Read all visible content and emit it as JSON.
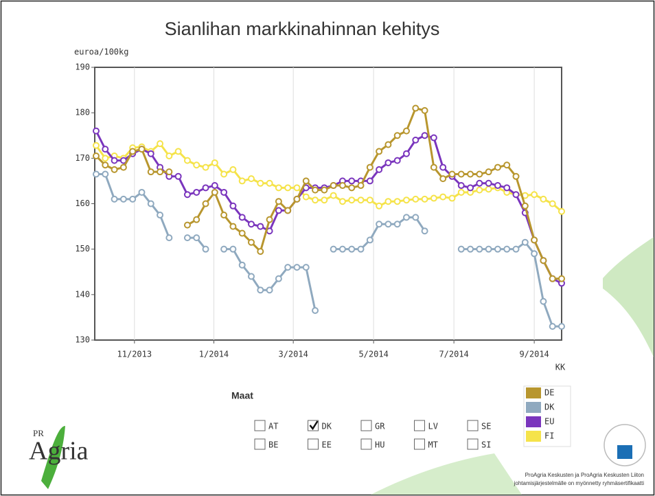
{
  "chart_data": {
    "type": "line",
    "title": "Sianlihan markkinahinnan kehitys",
    "y_label": "euroa/100kg",
    "x_label": "KK",
    "x": [
      0,
      1,
      2,
      3,
      4,
      5,
      6,
      7,
      8,
      9,
      10,
      11,
      12,
      13,
      14,
      15,
      16,
      17,
      18,
      19,
      20,
      21,
      22,
      23,
      24,
      25,
      26,
      27,
      28,
      29,
      30,
      31,
      32,
      33,
      34,
      35,
      36,
      37,
      38,
      39,
      40,
      41,
      42,
      43,
      44,
      45,
      46,
      47,
      48,
      49,
      50,
      51
    ],
    "xlim": [
      -0.15,
      51
    ],
    "xticks": [
      {
        "value": 4.2,
        "label": "11/2013"
      },
      {
        "value": 12.9,
        "label": "1/2014"
      },
      {
        "value": 21.6,
        "label": "3/2014"
      },
      {
        "value": 30.4,
        "label": "5/2014"
      },
      {
        "value": 39.2,
        "label": "7/2014"
      },
      {
        "value": 48,
        "label": "9/2014"
      }
    ],
    "ylim": [
      130,
      190
    ],
    "yticks": [
      130,
      140,
      150,
      160,
      170,
      180,
      190
    ],
    "grid": "x",
    "legend": "right",
    "series": [
      {
        "name": "DE",
        "color": "#b8962e",
        "values": [
          170.5,
          168.5,
          167.5,
          168,
          171.5,
          172,
          167,
          167,
          167,
          null,
          155.3,
          156.5,
          160,
          162.5,
          157.5,
          155,
          153.5,
          151.5,
          149.5,
          156.5,
          160.5,
          158.5,
          161,
          165,
          163,
          163,
          164,
          164,
          163.5,
          164,
          168,
          171.5,
          173,
          175,
          176,
          181,
          180.5,
          168,
          165.5,
          166.5,
          166.5,
          166.5,
          166.5,
          167,
          168,
          168.5,
          166,
          159.5,
          152,
          147.5,
          143.5,
          143.5
        ]
      },
      {
        "name": "DK",
        "color": "#8fa9bf",
        "values": [
          166.5,
          166.5,
          161,
          161,
          161,
          162.5,
          160,
          157.5,
          152.5,
          null,
          152.5,
          152.5,
          150,
          null,
          150,
          150,
          146.5,
          144,
          141,
          141,
          143.5,
          146,
          146,
          146,
          136.5,
          null,
          150,
          150,
          150,
          150,
          152,
          155.5,
          155.5,
          155.5,
          157,
          157,
          154,
          null,
          null,
          null,
          150,
          150,
          150,
          150,
          150,
          150,
          150,
          151.5,
          149,
          138.5,
          133,
          133
        ]
      },
      {
        "name": "EU",
        "color": "#7a35bd",
        "values": [
          176,
          172,
          169.5,
          169.5,
          171,
          172,
          171,
          168,
          166,
          166,
          162,
          162.5,
          163.5,
          164,
          162.5,
          159.5,
          157,
          155.5,
          155,
          154,
          158.5,
          158.5,
          161,
          163.5,
          163.5,
          163.5,
          164,
          165,
          165,
          165,
          165,
          167.5,
          169,
          169.5,
          171,
          174,
          175,
          174.5,
          168,
          166,
          164,
          163.5,
          164.5,
          164.5,
          164,
          163.5,
          162,
          158,
          152,
          147.5,
          143.5,
          142.5
        ]
      },
      {
        "name": "FI",
        "color": "#f5e34a",
        "values": [
          172.8,
          170,
          170.5,
          170,
          172.3,
          172.5,
          171.5,
          173.2,
          170.5,
          171.5,
          169.5,
          168.5,
          168,
          169,
          166.5,
          167.5,
          165,
          165.5,
          164.5,
          164.5,
          163.5,
          163.5,
          163.5,
          161.5,
          160.8,
          160.8,
          161.8,
          160.5,
          160.8,
          160.8,
          160.8,
          159.5,
          160.5,
          160.5,
          160.8,
          161,
          161,
          161.2,
          161.5,
          161.2,
          162.5,
          162.5,
          163,
          163.2,
          163.5,
          162.5,
          162,
          161.8,
          162,
          161,
          160,
          158.3
        ]
      }
    ]
  },
  "filter": {
    "label": "Maat",
    "options": [
      {
        "label": "AT",
        "checked": false
      },
      {
        "label": "BE",
        "checked": false
      },
      {
        "label": "DK",
        "checked": true
      },
      {
        "label": "EE",
        "checked": false
      },
      {
        "label": "GR",
        "checked": false
      },
      {
        "label": "HU",
        "checked": false
      },
      {
        "label": "LV",
        "checked": false
      },
      {
        "label": "MT",
        "checked": false
      },
      {
        "label": "SE",
        "checked": false
      },
      {
        "label": "SI",
        "checked": false
      }
    ]
  },
  "logo": {
    "top": "PR",
    "main": "Agria"
  },
  "footer": {
    "line1": "ProAgria Keskusten ja ProAgria Keskusten Liiton",
    "line2": "johtamisjärjestelmälle on myönnetty ryhmäsertifikaatti"
  }
}
